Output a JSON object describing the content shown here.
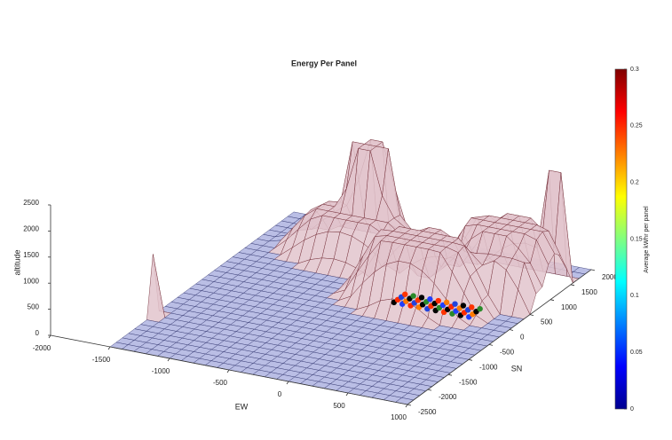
{
  "chart_data": {
    "type": "surface",
    "title": "Energy Per Panel",
    "xlabel": "EW",
    "ylabel": "SN",
    "zlabel": "altitude",
    "xlim": [
      -2000,
      1000
    ],
    "xticks": [
      -2000,
      -1500,
      -1000,
      -500,
      0,
      500,
      1000
    ],
    "ylim": [
      -2500,
      2000
    ],
    "yticks": [
      -2500,
      -2000,
      -1500,
      -1000,
      -500,
      0,
      500,
      1000,
      1500,
      2000
    ],
    "zlim": [
      0,
      2500
    ],
    "zticks": [
      0,
      500,
      1000,
      1500,
      2000,
      2500
    ],
    "colorbar": {
      "label": "Average kWhr per panel",
      "lim": [
        0,
        0.3
      ],
      "ticks": [
        0,
        0.05,
        0.1,
        0.15,
        0.2,
        0.25,
        0.3
      ]
    }
  }
}
